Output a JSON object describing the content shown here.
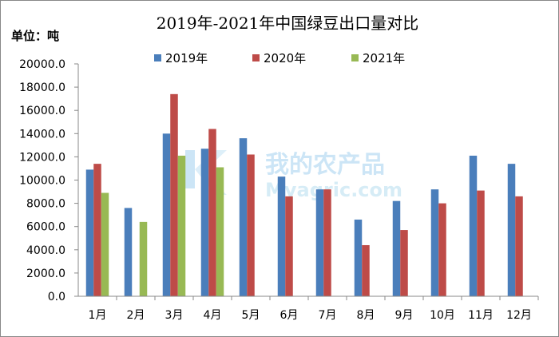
{
  "chart_data": {
    "type": "bar",
    "title": "2019年-2021年中国绿豆出口量对比",
    "unit_label": "单位：吨",
    "categories": [
      "1月",
      "2月",
      "3月",
      "4月",
      "5月",
      "6月",
      "7月",
      "8月",
      "9月",
      "10月",
      "11月",
      "12月"
    ],
    "series": [
      {
        "name": "2019年",
        "color": "#4a7ebb",
        "values": [
          10900,
          7600,
          14000,
          12700,
          13600,
          10300,
          9200,
          6600,
          8200,
          9200,
          12100,
          11400
        ]
      },
      {
        "name": "2020年",
        "color": "#be4b48",
        "values": [
          11400,
          null,
          17400,
          14400,
          12200,
          8600,
          9200,
          4400,
          5700,
          8000,
          9100,
          8600
        ]
      },
      {
        "name": "2021年",
        "color": "#98b954",
        "values": [
          8900,
          6400,
          12100,
          11100,
          null,
          null,
          null,
          null,
          null,
          null,
          null,
          null
        ]
      }
    ],
    "ylim": [
      0,
      20000
    ],
    "y_ticks": [
      "0.0",
      "2000.0",
      "4000.0",
      "6000.0",
      "8000.0",
      "10000.0",
      "12000.0",
      "14000.0",
      "16000.0",
      "18000.0",
      "20000.0"
    ],
    "legend_position": "top",
    "grid": false
  },
  "watermark": {
    "text_cn": "我的农产品",
    "text_en": "Myagric.com",
    "logo_icon": "myagric-logo-icon"
  }
}
